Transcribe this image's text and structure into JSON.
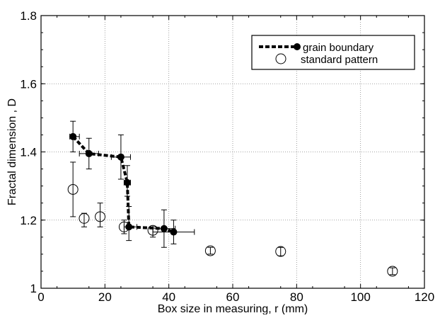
{
  "chart_data": {
    "type": "scatter",
    "title": "",
    "xlabel": "Box size in measuring, r (mm)",
    "ylabel": "Fractal dimension , D",
    "xlim": [
      0,
      120
    ],
    "ylim": [
      1,
      1.8
    ],
    "xticks": [
      "0",
      "20",
      "40",
      "60",
      "80",
      "100",
      "120"
    ],
    "yticks": [
      "1",
      "1.2",
      "1.4",
      "1.6",
      "1.8"
    ],
    "grid": "dotted",
    "legend_position": "top-right",
    "series": [
      {
        "name": "grain boundary",
        "marker": "filled-circle",
        "line": "dashed",
        "color": "#000000",
        "points": [
          {
            "x": 10,
            "y": 1.445,
            "y_err": [
              1.4,
              1.49
            ],
            "x_err": [
              9,
              12
            ]
          },
          {
            "x": 15,
            "y": 1.395,
            "y_err": [
              1.35,
              1.44
            ],
            "x_err": [
              12,
              18
            ]
          },
          {
            "x": 25,
            "y": 1.385,
            "y_err": [
              1.32,
              1.45
            ],
            "x_err": [
              22,
              28
            ]
          },
          {
            "x": 27,
            "y": 1.31,
            "y_err": [
              1.27,
              1.36
            ],
            "x_err": [
              26,
              28
            ]
          },
          {
            "x": 27.5,
            "y": 1.18,
            "y_err": [
              1.14,
              1.24
            ],
            "x_err": [
              26,
              30
            ]
          },
          {
            "x": 38.5,
            "y": 1.175,
            "y_err": [
              1.12,
              1.23
            ],
            "x_err": [
              35,
              42
            ]
          },
          {
            "x": 41.5,
            "y": 1.165,
            "y_err": [
              1.13,
              1.2
            ],
            "x_err": [
              35,
              48
            ]
          }
        ]
      },
      {
        "name": "standard pattern",
        "marker": "open-circle",
        "line": "none",
        "color": "#000000",
        "points": [
          {
            "x": 10,
            "y": 1.29,
            "y_err": [
              1.21,
              1.37
            ]
          },
          {
            "x": 13.5,
            "y": 1.205,
            "y_err": [
              1.18,
              1.22
            ]
          },
          {
            "x": 18.5,
            "y": 1.21,
            "y_err": [
              1.18,
              1.25
            ]
          },
          {
            "x": 26,
            "y": 1.18,
            "y_err": [
              1.16,
              1.2
            ]
          },
          {
            "x": 35,
            "y": 1.17,
            "y_err": [
              1.15,
              1.18
            ]
          },
          {
            "x": 53,
            "y": 1.11,
            "y_err": [
              1.1,
              1.12
            ]
          },
          {
            "x": 75,
            "y": 1.108,
            "y_err": [
              1.095,
              1.12
            ]
          },
          {
            "x": 110,
            "y": 1.05,
            "y_err": [
              1.04,
              1.06
            ]
          }
        ]
      }
    ]
  }
}
